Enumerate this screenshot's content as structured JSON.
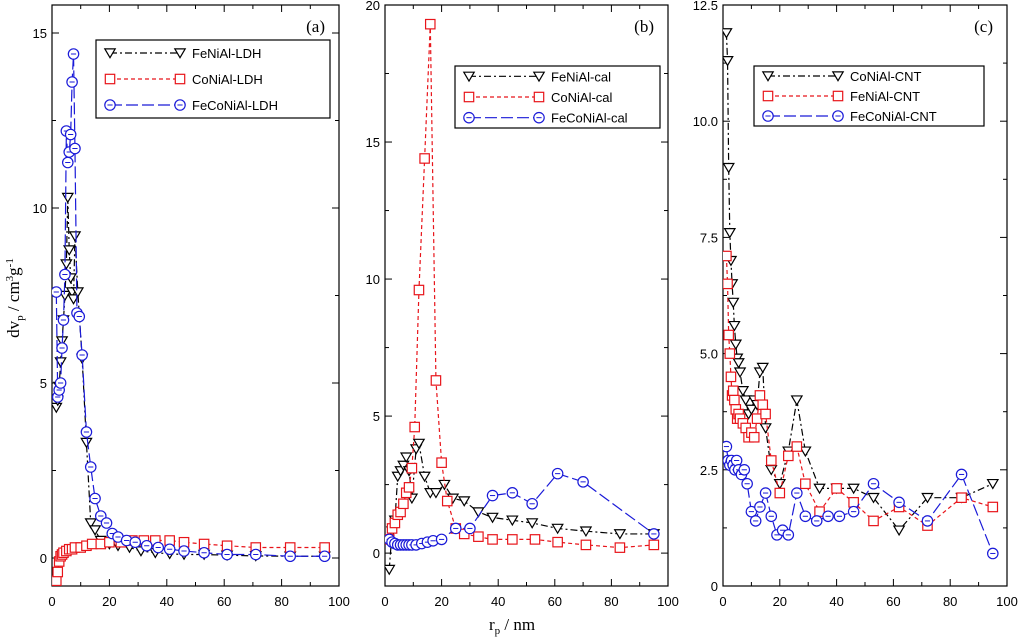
{
  "y_axis_title": {
    "main": "dv",
    "sub": "p",
    "rest": " / cm",
    "sup1": "3",
    "g": "g",
    "sup2": "-1"
  },
  "x_axis_title": {
    "main": "r",
    "sub": "p",
    "rest": " / nm"
  },
  "chart_data": [
    {
      "type": "line",
      "panel": "(a)",
      "xlim": [
        0,
        100
      ],
      "ylim": [
        -0.8,
        15.8
      ],
      "xticks": [
        "0",
        "20",
        "40",
        "60",
        "80",
        "100"
      ],
      "yticks": [
        {
          "v": 0,
          "label": "0"
        },
        {
          "v": 5,
          "label": "5"
        },
        {
          "v": 10,
          "label": "10"
        },
        {
          "v": 15,
          "label": "15"
        }
      ],
      "legend_position": "top-right",
      "series": [
        {
          "name": "FeNiAl-LDH",
          "color": "#000000",
          "marker": "triangle-down",
          "dash": "7,3,2,3",
          "x": [
            1.5,
            2.0,
            2.5,
            3.0,
            3.5,
            4.0,
            4.5,
            5.0,
            5.5,
            6.0,
            6.5,
            7.0,
            7.5,
            8.0,
            9.0,
            10.5,
            12.0,
            13.5,
            15,
            17,
            20,
            23,
            27,
            31,
            36,
            41,
            46,
            53,
            61,
            71,
            83,
            95
          ],
          "y": [
            4.3,
            4.5,
            4.9,
            5.6,
            6.2,
            6.8,
            7.5,
            8.4,
            10.3,
            8.8,
            8.0,
            7.6,
            7.4,
            9.2,
            7.6,
            5.7,
            3.3,
            1.0,
            0.8,
            0.5,
            0.4,
            0.35,
            0.3,
            0.2,
            0.15,
            0.12,
            0.1,
            0.1,
            0.08,
            0.06,
            0.05,
            0.05
          ]
        },
        {
          "name": "CoNiAl-LDH",
          "color": "#e8141a",
          "marker": "square",
          "dash": "4,3",
          "x": [
            1.5,
            2.0,
            2.5,
            3.0,
            3.5,
            4.0,
            5.0,
            6.0,
            7.0,
            8.0,
            10,
            12,
            14,
            17,
            20,
            24,
            28,
            32,
            36,
            41,
            46,
            53,
            61,
            71,
            83,
            95
          ],
          "y": [
            -0.65,
            -0.4,
            -0.1,
            0.05,
            0.1,
            0.15,
            0.2,
            0.25,
            0.25,
            0.3,
            0.3,
            0.35,
            0.4,
            0.4,
            0.45,
            0.45,
            0.5,
            0.5,
            0.5,
            0.5,
            0.45,
            0.4,
            0.35,
            0.3,
            0.3,
            0.3
          ]
        },
        {
          "name": "FeCoNiAl-LDH",
          "color": "#1a1ad8",
          "marker": "circle",
          "dash": "12,4",
          "x": [
            1.5,
            2.0,
            2.5,
            3.0,
            3.5,
            4.0,
            4.5,
            5.0,
            5.5,
            6.0,
            6.5,
            7.0,
            7.5,
            8.0,
            8.7,
            9.5,
            10.5,
            12.0,
            13.5,
            15,
            17,
            19,
            21,
            23,
            26,
            29,
            33,
            37,
            41,
            46,
            53,
            61,
            71,
            83,
            95
          ],
          "y": [
            7.6,
            4.6,
            4.8,
            5.0,
            6.0,
            6.8,
            8.1,
            12.2,
            11.3,
            11.6,
            12.1,
            13.6,
            14.4,
            11.7,
            7.0,
            6.9,
            5.8,
            3.6,
            2.6,
            1.7,
            1.2,
            1.0,
            0.7,
            0.6,
            0.5,
            0.45,
            0.35,
            0.3,
            0.25,
            0.2,
            0.15,
            0.1,
            0.1,
            0.05,
            0.05
          ]
        }
      ]
    },
    {
      "type": "line",
      "panel": "(b)",
      "xlim": [
        0,
        100
      ],
      "ylim": [
        -1.2,
        20
      ],
      "xticks": [
        "0",
        "20",
        "40",
        "60",
        "80",
        "100"
      ],
      "yticks": [
        {
          "v": 0,
          "label": "0"
        },
        {
          "v": 5,
          "label": "5"
        },
        {
          "v": 10,
          "label": "10"
        },
        {
          "v": 15,
          "label": "15"
        },
        {
          "v": 20,
          "label": "20"
        }
      ],
      "legend_position": "top-right",
      "series": [
        {
          "name": "FeNiAl-cal",
          "color": "#000000",
          "marker": "triangle-down",
          "dash": "7,3,2,3",
          "x": [
            1.5,
            2.5,
            3.5,
            4.5,
            5.5,
            6.5,
            7.5,
            8.5,
            9.5,
            11,
            12,
            14,
            16,
            18,
            21,
            24,
            28,
            33,
            38,
            45,
            52,
            61,
            71,
            83,
            95
          ],
          "y": [
            -0.6,
            0.8,
            1.2,
            2.8,
            3.0,
            3.2,
            3.5,
            3.0,
            2.0,
            3.8,
            4.0,
            2.8,
            2.2,
            2.2,
            2.5,
            2.0,
            1.9,
            1.5,
            1.3,
            1.2,
            1.1,
            0.9,
            0.8,
            0.7,
            0.7
          ]
        },
        {
          "name": "CoNiAl-cal",
          "color": "#e8141a",
          "marker": "square",
          "dash": "4,3",
          "x": [
            1.5,
            2.5,
            3.5,
            4.5,
            5.5,
            6.5,
            7.5,
            8.5,
            9.5,
            10.5,
            12,
            14,
            16,
            18,
            20,
            22,
            25,
            28,
            33,
            38,
            45,
            53,
            61,
            71,
            83,
            95
          ],
          "y": [
            0.5,
            0.9,
            1.1,
            1.4,
            1.5,
            1.8,
            2.2,
            2.4,
            3.1,
            4.6,
            9.6,
            14.4,
            19.3,
            6.3,
            3.3,
            1.9,
            0.9,
            0.7,
            0.6,
            0.5,
            0.5,
            0.5,
            0.4,
            0.3,
            0.2,
            0.3
          ]
        },
        {
          "name": "FeCoNiAl-cal",
          "color": "#1a1ad8",
          "marker": "circle",
          "dash": "12,4",
          "x": [
            1.5,
            2.5,
            3.5,
            4.5,
            5.5,
            6.5,
            7.5,
            8.5,
            9.5,
            11,
            13,
            15,
            17,
            20,
            25,
            30,
            38,
            45,
            52,
            61,
            70,
            95
          ],
          "y": [
            0.5,
            0.4,
            0.35,
            0.3,
            0.3,
            0.3,
            0.3,
            0.3,
            0.3,
            0.3,
            0.35,
            0.4,
            0.45,
            0.5,
            0.9,
            0.9,
            2.1,
            2.2,
            1.8,
            2.9,
            2.6,
            0.7
          ]
        }
      ]
    },
    {
      "type": "line",
      "panel": "(c)",
      "xlim": [
        0,
        100
      ],
      "ylim": [
        0,
        12.5
      ],
      "xticks": [
        "0",
        "20",
        "40",
        "60",
        "80",
        "100"
      ],
      "yticks": [
        {
          "v": 0,
          "label": "0"
        },
        {
          "v": 2.5,
          "label": "2.5"
        },
        {
          "v": 5,
          "label": "5.0"
        },
        {
          "v": 7.5,
          "label": "7.5"
        },
        {
          "v": 10,
          "label": "10.0"
        },
        {
          "v": 12.5,
          "label": "12.5"
        }
      ],
      "legend_position": "top-right",
      "series": [
        {
          "name": "CoNiAl-CNT",
          "color": "#000000",
          "marker": "triangle-down",
          "dash": "7,3,2,3",
          "x": [
            1.2,
            1.6,
            2.0,
            2.4,
            2.8,
            3.2,
            3.6,
            4.0,
            4.5,
            5.0,
            5.5,
            6.0,
            7.0,
            8.0,
            9.0,
            10,
            11,
            12,
            13,
            14,
            15,
            17,
            20,
            23,
            26,
            29,
            34,
            40,
            46,
            53,
            62,
            72,
            84,
            95
          ],
          "y": [
            11.9,
            11.3,
            9.0,
            7.6,
            7.0,
            6.5,
            6.1,
            5.6,
            5.2,
            4.9,
            4.8,
            4.6,
            4.2,
            4.0,
            3.7,
            3.8,
            4.0,
            3.9,
            4.6,
            4.7,
            3.4,
            2.5,
            2.2,
            2.9,
            4.0,
            2.9,
            2.1,
            2.1,
            2.1,
            1.9,
            1.2,
            1.9,
            1.9,
            2.2
          ]
        },
        {
          "name": "FeNiAl-CNT",
          "color": "#e8141a",
          "marker": "square",
          "dash": "4,3",
          "x": [
            1.2,
            1.6,
            2.0,
            2.4,
            2.8,
            3.2,
            3.6,
            4.0,
            4.5,
            5.0,
            5.5,
            6.0,
            7.0,
            8.0,
            9.0,
            10,
            11,
            12,
            13,
            14,
            15,
            17,
            20,
            23,
            26,
            29,
            34,
            40,
            46,
            53,
            62,
            72,
            84,
            95
          ],
          "y": [
            7.1,
            6.5,
            5.4,
            5.0,
            4.5,
            4.1,
            4.2,
            4.0,
            3.8,
            3.6,
            3.7,
            3.6,
            3.5,
            3.4,
            3.2,
            3.3,
            3.2,
            3.6,
            4.1,
            3.9,
            3.7,
            2.7,
            2.0,
            2.8,
            3.0,
            2.2,
            1.6,
            2.1,
            1.8,
            1.4,
            1.7,
            1.3,
            1.9,
            1.7
          ]
        },
        {
          "name": "FeCoNiAl-CNT",
          "color": "#1a1ad8",
          "marker": "circle",
          "dash": "12,4",
          "x": [
            1.2,
            1.8,
            2.4,
            3.0,
            3.6,
            4.2,
            4.8,
            5.5,
            6.5,
            7.5,
            8.5,
            10,
            11.5,
            13,
            15,
            17,
            19,
            21,
            23,
            26,
            29,
            33,
            37,
            41,
            46,
            53,
            62,
            72,
            84,
            95
          ],
          "y": [
            3.0,
            2.7,
            2.6,
            2.7,
            2.6,
            2.5,
            2.7,
            2.5,
            2.4,
            2.5,
            2.2,
            1.6,
            1.4,
            1.7,
            2.0,
            1.5,
            1.1,
            1.2,
            1.1,
            2.0,
            1.5,
            1.4,
            1.5,
            1.5,
            1.6,
            2.2,
            1.8,
            1.4,
            2.4,
            0.7
          ]
        }
      ]
    }
  ]
}
